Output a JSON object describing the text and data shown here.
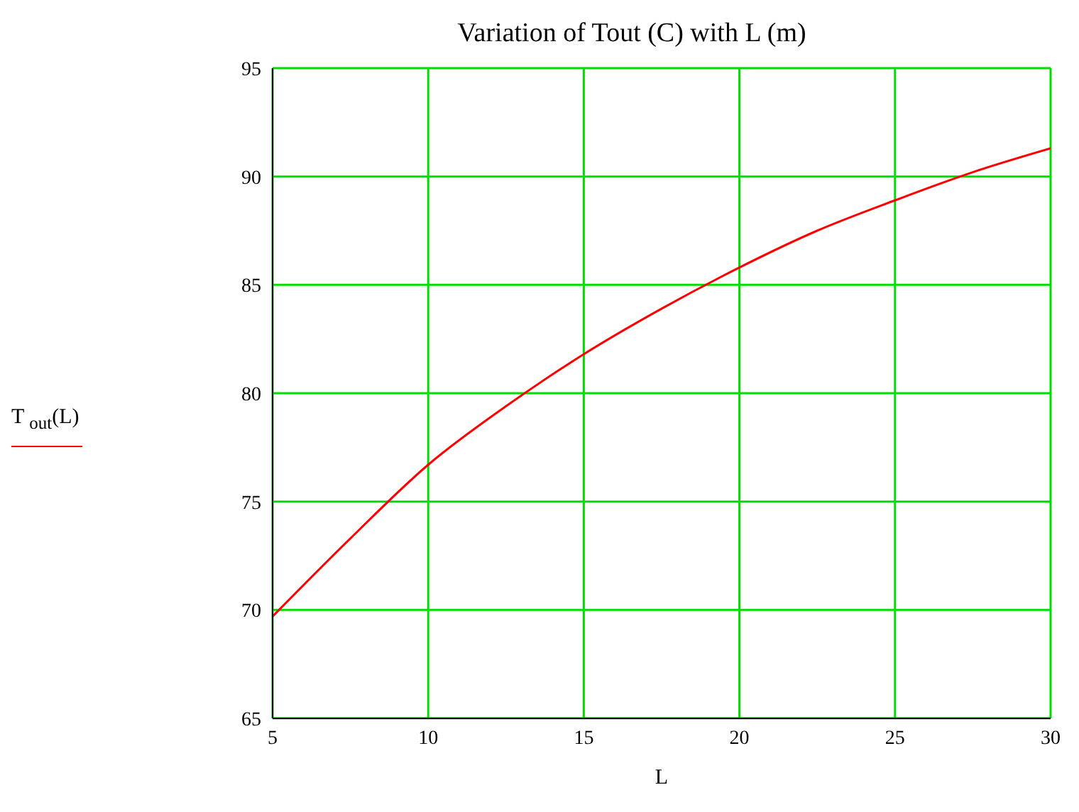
{
  "chart_data": {
    "type": "line",
    "title": "Variation of Tout (C) with L (m)",
    "xlabel": "L",
    "x": [
      5,
      7.5,
      10,
      12.5,
      15,
      17.5,
      20,
      22.5,
      25,
      27.5,
      30
    ],
    "series": [
      {
        "name": "T $_{out}$(L)",
        "color": "#ff0000",
        "values": [
          69.7,
          73.3,
          76.7,
          79.4,
          81.8,
          83.9,
          85.8,
          87.5,
          88.9,
          90.2,
          91.3
        ]
      }
    ],
    "xlim": [
      5,
      30
    ],
    "xticks": [
      5,
      10,
      15,
      20,
      25,
      30
    ],
    "ylim": [
      65,
      95
    ],
    "yticks": [
      65,
      70,
      75,
      80,
      85,
      90,
      95
    ],
    "grid": true,
    "legend": "left",
    "marker": "none",
    "line_style": "solid"
  }
}
